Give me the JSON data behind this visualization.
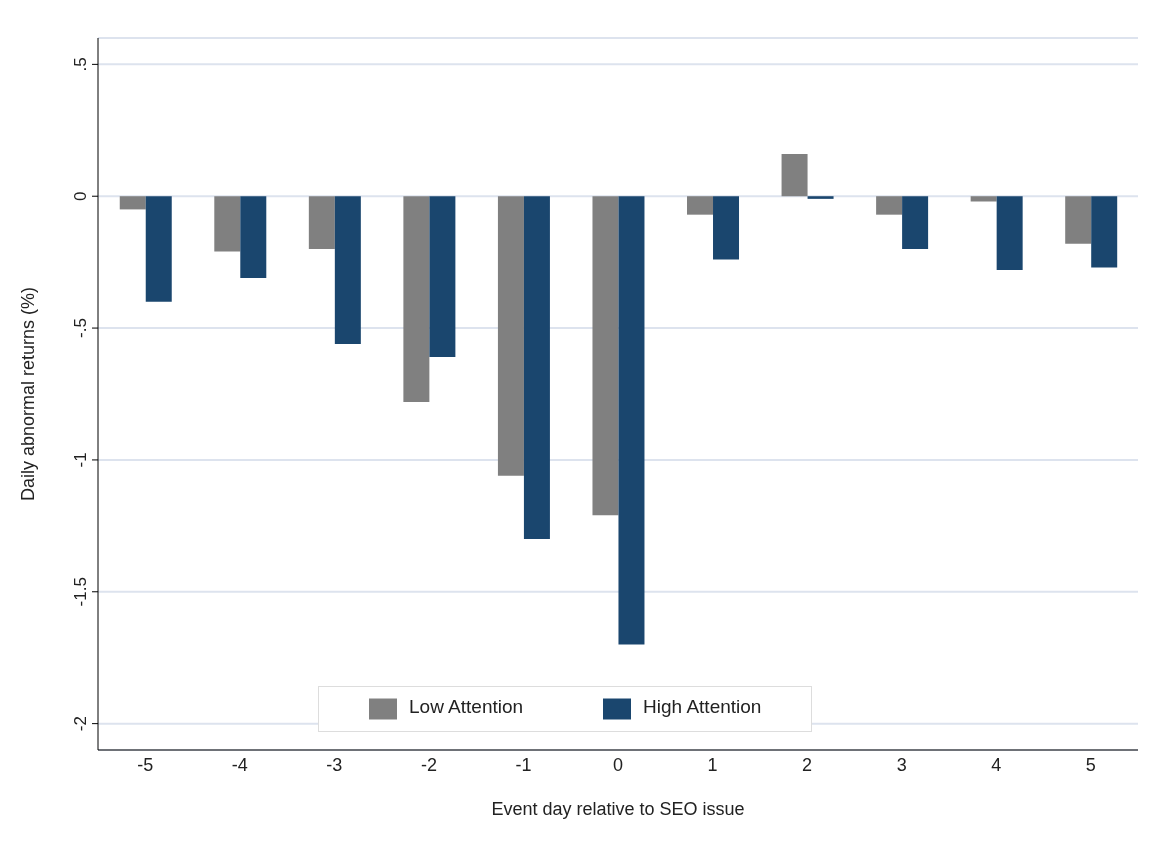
{
  "chart_data": {
    "type": "bar",
    "xlabel": "Event day relative to SEO issue",
    "ylabel": "Daily abnormal returns (%)",
    "categories": [
      "-5",
      "-4",
      "-3",
      "-2",
      "-1",
      "0",
      "1",
      "2",
      "3",
      "4",
      "5"
    ],
    "series": [
      {
        "name": "Low Attention",
        "color": "#808080",
        "values": [
          -0.05,
          -0.21,
          -0.2,
          -0.78,
          -1.06,
          -1.21,
          -0.07,
          0.16,
          -0.07,
          -0.02,
          -0.18
        ]
      },
      {
        "name": "High Attention",
        "color": "#1a466e",
        "values": [
          -0.4,
          -0.31,
          -0.56,
          -0.61,
          -1.3,
          -1.7,
          -0.24,
          -0.01,
          -0.2,
          -0.28,
          -0.27
        ]
      }
    ],
    "ylim": [
      -2.1,
      0.6
    ],
    "yticks": [
      {
        "value": -2,
        "label": "-2"
      },
      {
        "value": -1.5,
        "label": "-1.5"
      },
      {
        "value": -1,
        "label": "-1"
      },
      {
        "value": -0.5,
        "label": "-.5"
      },
      {
        "value": 0,
        "label": "0"
      },
      {
        "value": 0.5,
        "label": ".5"
      }
    ],
    "grid": "y",
    "legend": "bottom"
  }
}
